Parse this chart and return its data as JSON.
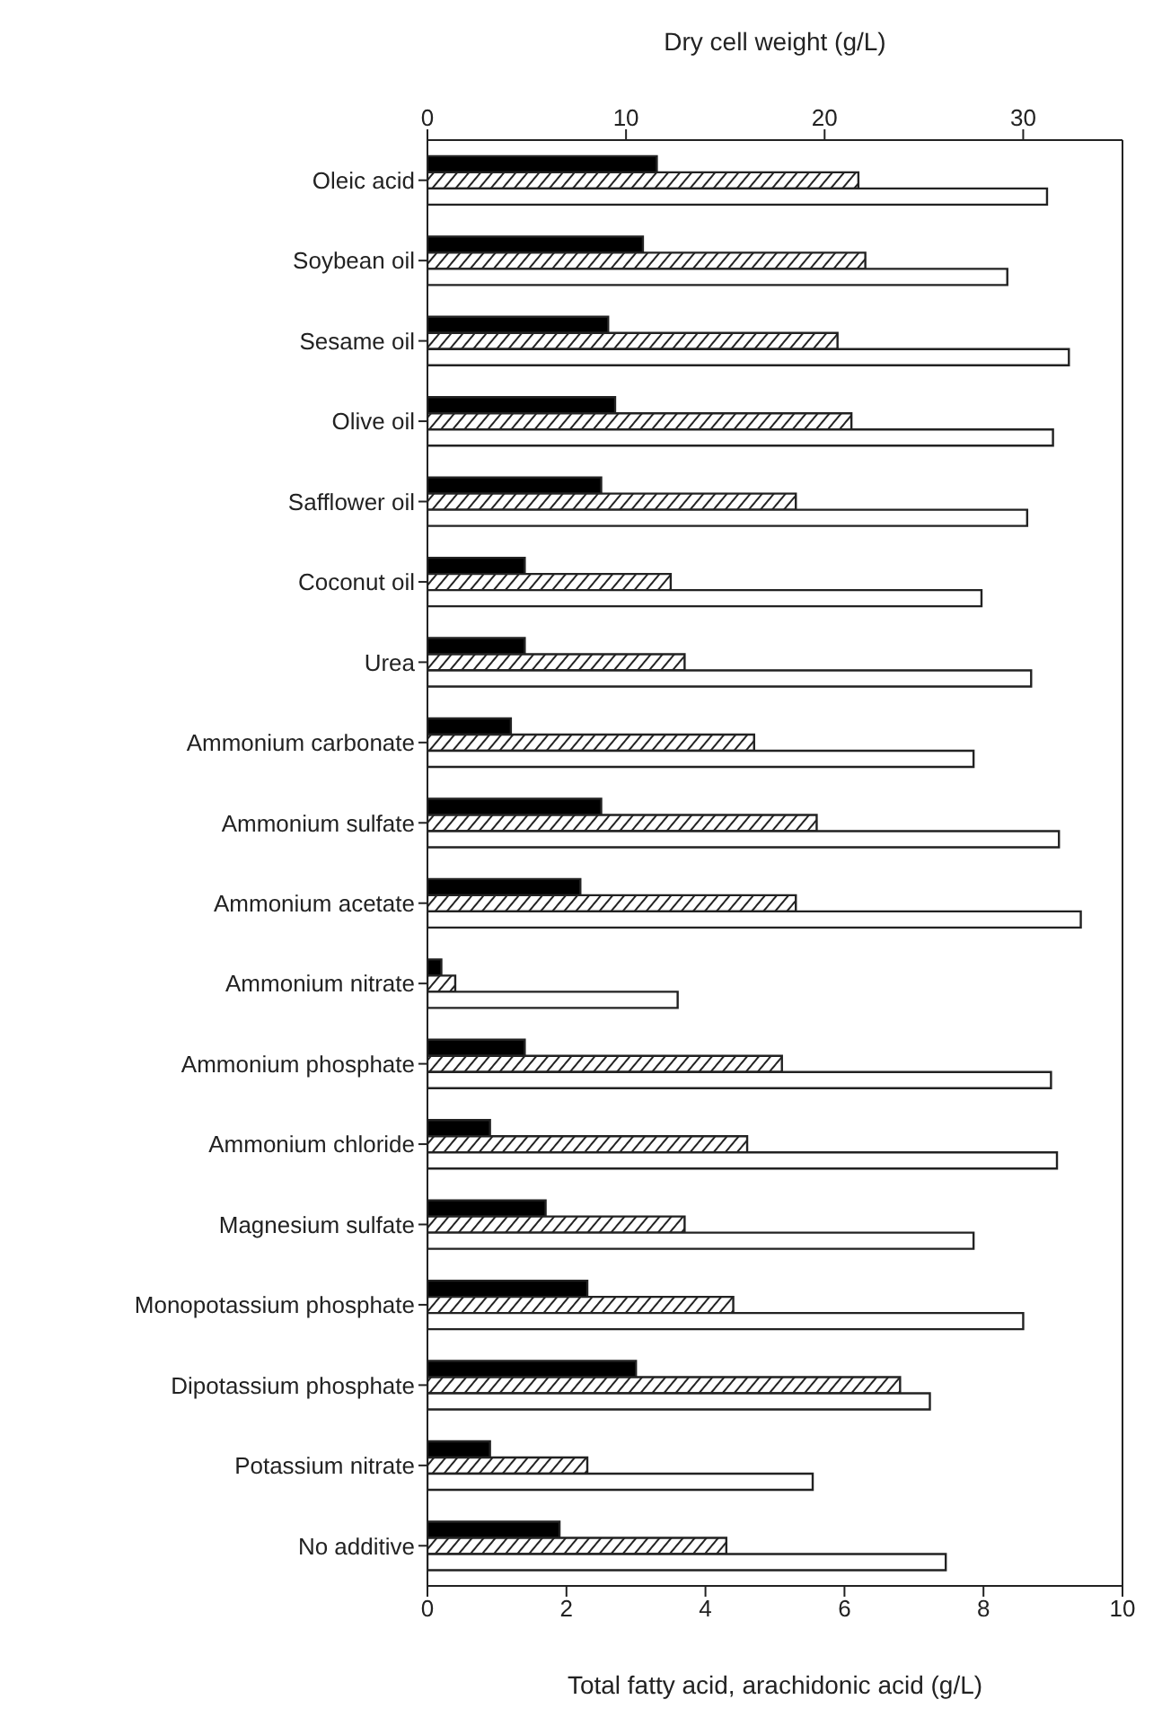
{
  "chart_data": {
    "type": "bar",
    "orientation": "horizontal",
    "xlabel": "Total fatty acid, arachidonic acid (g/L)",
    "x2label": "Dry cell weight (g/L)",
    "categories": [
      "Oleic acid",
      "Soybean oil",
      "Sesame oil",
      "Olive oil",
      "Safflower oil",
      "Coconut oil",
      "Urea",
      "Ammonium carbonate",
      "Ammonium sulfate",
      "Ammonium acetate",
      "Ammonium nitrate",
      "Ammonium phosphate",
      "Ammonium chloride",
      "Magnesium sulfate",
      "Monopotassium phosphate",
      "Dipotassium phosphate",
      "Potassium nitrate",
      "No additive"
    ],
    "series": [
      {
        "color": "#000000",
        "values": [
          3.3,
          3.1,
          2.6,
          2.7,
          2.5,
          1.4,
          1.4,
          1.2,
          2.5,
          2.2,
          0.2,
          1.4,
          0.9,
          1.7,
          2.3,
          3.0,
          0.9,
          1.9
        ]
      },
      {
        "color": "#222222",
        "values": [
          6.2,
          6.3,
          5.9,
          6.1,
          5.3,
          3.5,
          3.7,
          4.7,
          5.6,
          5.3,
          0.4,
          5.1,
          4.6,
          3.7,
          4.4,
          6.8,
          2.3,
          4.3
        ]
      },
      {
        "color": "#ffffff",
        "axis": "x2",
        "values": [
          31.2,
          29.2,
          32.3,
          31.5,
          30.2,
          27.9,
          30.4,
          27.5,
          31.8,
          32.9,
          12.6,
          31.4,
          31.7,
          27.5,
          30.0,
          25.3,
          19.4,
          26.1
        ]
      }
    ],
    "xlim": [
      0,
      10
    ],
    "xticks": [
      0,
      2,
      4,
      6,
      8,
      10
    ],
    "x2lim": [
      0,
      35
    ],
    "x2ticks": [
      0,
      10,
      20,
      30
    ]
  }
}
